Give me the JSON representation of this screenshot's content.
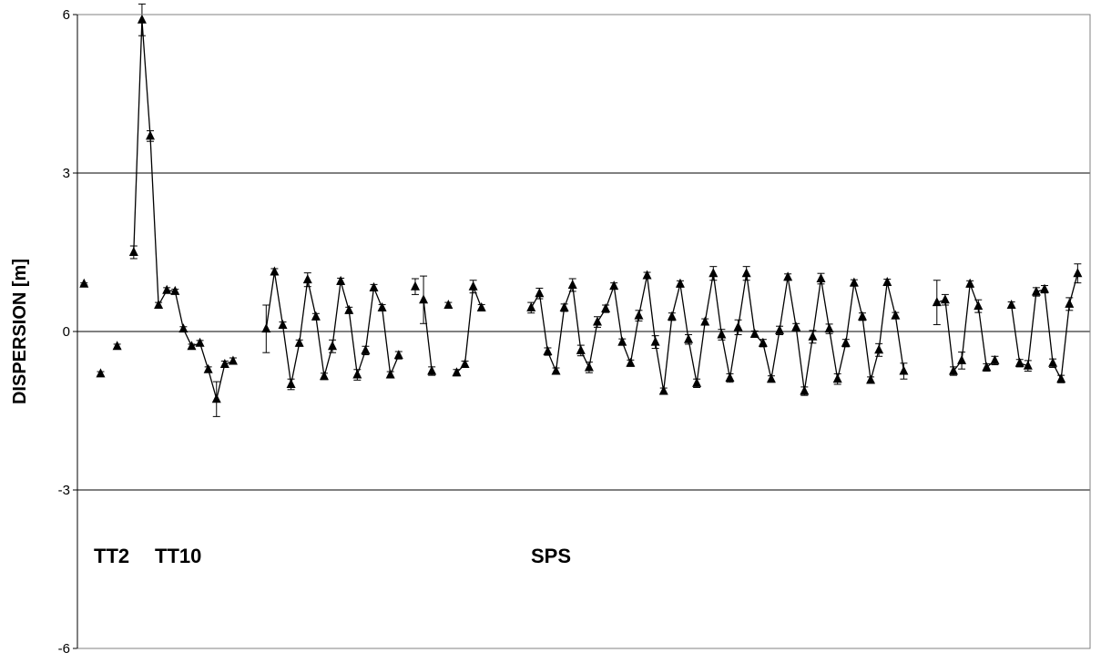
{
  "chart_data": {
    "type": "line",
    "ylabel": "DISPERSION  [m]",
    "xlabel": "",
    "ylim": [
      -6,
      6
    ],
    "y_ticks": [
      "6",
      "3",
      "0",
      "-3",
      "-6"
    ],
    "grid": "horizontal",
    "marker": "filled-triangle",
    "annotations": [
      "TT2",
      "TT10",
      "SPS"
    ],
    "series": [
      {
        "segments": [
          [
            {
              "x": 1,
              "y": 0.9,
              "e": 0.02
            }
          ],
          [
            {
              "x": 3,
              "y": -0.8,
              "e": 0.04
            }
          ],
          [
            {
              "x": 5,
              "y": -0.28,
              "e": 0.04
            }
          ],
          [
            {
              "x": 7,
              "y": 1.5,
              "e": 0.12
            },
            {
              "x": 8,
              "y": 5.9,
              "e": 0.3
            },
            {
              "x": 9,
              "y": 3.7,
              "e": 0.1
            },
            {
              "x": 10,
              "y": 0.5,
              "e": 0.05
            },
            {
              "x": 11,
              "y": 0.78,
              "e": 0.05
            },
            {
              "x": 12,
              "y": 0.76,
              "e": 0.04
            },
            {
              "x": 13,
              "y": 0.05,
              "e": 0.04
            },
            {
              "x": 14,
              "y": -0.28,
              "e": 0.04
            },
            {
              "x": 15,
              "y": -0.22,
              "e": 0.05
            },
            {
              "x": 16,
              "y": -0.72,
              "e": 0.05
            },
            {
              "x": 17,
              "y": -1.28,
              "e": 0.33
            },
            {
              "x": 18,
              "y": -0.62,
              "e": 0.06
            },
            {
              "x": 19,
              "y": -0.56,
              "e": 0.06
            }
          ],
          [
            {
              "x": 23,
              "y": 0.05,
              "e": 0.45
            },
            {
              "x": 24,
              "y": 1.13,
              "e": 0.06
            },
            {
              "x": 25,
              "y": 0.12,
              "e": 0.06
            },
            {
              "x": 26,
              "y": -1.0,
              "e": 0.1
            },
            {
              "x": 27,
              "y": -0.22,
              "e": 0.06
            },
            {
              "x": 28,
              "y": 0.98,
              "e": 0.13
            },
            {
              "x": 29,
              "y": 0.28,
              "e": 0.06
            },
            {
              "x": 30,
              "y": -0.85,
              "e": 0.06
            },
            {
              "x": 31,
              "y": -0.28,
              "e": 0.12
            },
            {
              "x": 32,
              "y": 0.95,
              "e": 0.06
            },
            {
              "x": 33,
              "y": 0.4,
              "e": 0.06
            },
            {
              "x": 34,
              "y": -0.82,
              "e": 0.1
            },
            {
              "x": 35,
              "y": -0.36,
              "e": 0.08
            },
            {
              "x": 36,
              "y": 0.83,
              "e": 0.06
            },
            {
              "x": 37,
              "y": 0.45,
              "e": 0.06
            },
            {
              "x": 38,
              "y": -0.82,
              "e": 0.06
            },
            {
              "x": 39,
              "y": -0.45,
              "e": 0.07
            }
          ],
          [
            {
              "x": 41,
              "y": 0.85,
              "e": 0.15
            }
          ],
          [
            {
              "x": 42,
              "y": 0.6,
              "e": 0.45
            },
            {
              "x": 43,
              "y": -0.75,
              "e": 0.08
            }
          ],
          [
            {
              "x": 45,
              "y": 0.5,
              "e": 0.05
            }
          ],
          [
            {
              "x": 46,
              "y": -0.78,
              "e": 0.06
            },
            {
              "x": 47,
              "y": -0.62,
              "e": 0.06
            },
            {
              "x": 48,
              "y": 0.85,
              "e": 0.12
            },
            {
              "x": 49,
              "y": 0.45,
              "e": 0.06
            }
          ],
          [
            {
              "x": 55,
              "y": 0.45,
              "e": 0.1
            },
            {
              "x": 56,
              "y": 0.72,
              "e": 0.1
            },
            {
              "x": 57,
              "y": -0.38,
              "e": 0.07
            },
            {
              "x": 58,
              "y": -0.75,
              "e": 0.06
            },
            {
              "x": 59,
              "y": 0.45,
              "e": 0.07
            },
            {
              "x": 60,
              "y": 0.88,
              "e": 0.12
            },
            {
              "x": 61,
              "y": -0.36,
              "e": 0.1
            },
            {
              "x": 62,
              "y": -0.68,
              "e": 0.1
            },
            {
              "x": 63,
              "y": 0.18,
              "e": 0.1
            },
            {
              "x": 64,
              "y": 0.43,
              "e": 0.07
            },
            {
              "x": 65,
              "y": 0.86,
              "e": 0.06
            },
            {
              "x": 66,
              "y": -0.2,
              "e": 0.06
            },
            {
              "x": 67,
              "y": -0.6,
              "e": 0.06
            },
            {
              "x": 68,
              "y": 0.3,
              "e": 0.1
            },
            {
              "x": 69,
              "y": 1.06,
              "e": 0.06
            },
            {
              "x": 70,
              "y": -0.2,
              "e": 0.12
            },
            {
              "x": 71,
              "y": -1.13,
              "e": 0.06
            },
            {
              "x": 72,
              "y": 0.28,
              "e": 0.07
            },
            {
              "x": 73,
              "y": 0.9,
              "e": 0.06
            },
            {
              "x": 74,
              "y": -0.15,
              "e": 0.09
            },
            {
              "x": 75,
              "y": -0.98,
              "e": 0.08
            },
            {
              "x": 76,
              "y": 0.18,
              "e": 0.06
            },
            {
              "x": 77,
              "y": 1.1,
              "e": 0.13
            },
            {
              "x": 78,
              "y": -0.06,
              "e": 0.1
            },
            {
              "x": 79,
              "y": -0.88,
              "e": 0.08
            },
            {
              "x": 80,
              "y": 0.08,
              "e": 0.14
            },
            {
              "x": 81,
              "y": 1.1,
              "e": 0.13
            },
            {
              "x": 82,
              "y": -0.05,
              "e": 0.06
            },
            {
              "x": 83,
              "y": -0.22,
              "e": 0.07
            },
            {
              "x": 84,
              "y": -0.9,
              "e": 0.06
            },
            {
              "x": 85,
              "y": 0.02,
              "e": 0.08
            },
            {
              "x": 86,
              "y": 1.03,
              "e": 0.06
            },
            {
              "x": 87,
              "y": 0.08,
              "e": 0.07
            },
            {
              "x": 88,
              "y": -1.13,
              "e": 0.08
            },
            {
              "x": 89,
              "y": -0.1,
              "e": 0.12
            },
            {
              "x": 90,
              "y": 1.0,
              "e": 0.1
            },
            {
              "x": 91,
              "y": 0.05,
              "e": 0.09
            },
            {
              "x": 92,
              "y": -0.9,
              "e": 0.1
            },
            {
              "x": 93,
              "y": -0.22,
              "e": 0.07
            },
            {
              "x": 94,
              "y": 0.92,
              "e": 0.06
            },
            {
              "x": 95,
              "y": 0.28,
              "e": 0.07
            },
            {
              "x": 96,
              "y": -0.92,
              "e": 0.06
            },
            {
              "x": 97,
              "y": -0.35,
              "e": 0.12
            },
            {
              "x": 98,
              "y": 0.93,
              "e": 0.06
            },
            {
              "x": 99,
              "y": 0.3,
              "e": 0.06
            },
            {
              "x": 100,
              "y": -0.75,
              "e": 0.15
            }
          ],
          [
            {
              "x": 104,
              "y": 0.55,
              "e": 0.42
            },
            {
              "x": 105,
              "y": 0.6,
              "e": 0.1
            },
            {
              "x": 106,
              "y": -0.75,
              "e": 0.08
            },
            {
              "x": 107,
              "y": -0.55,
              "e": 0.16
            },
            {
              "x": 108,
              "y": 0.9,
              "e": 0.06
            },
            {
              "x": 109,
              "y": 0.48,
              "e": 0.12
            },
            {
              "x": 110,
              "y": -0.68,
              "e": 0.07
            },
            {
              "x": 111,
              "y": -0.55,
              "e": 0.08
            }
          ],
          [
            {
              "x": 113,
              "y": 0.5,
              "e": 0.06
            },
            {
              "x": 114,
              "y": -0.6,
              "e": 0.07
            },
            {
              "x": 115,
              "y": -0.65,
              "e": 0.1
            },
            {
              "x": 116,
              "y": 0.75,
              "e": 0.08
            },
            {
              "x": 117,
              "y": 0.8,
              "e": 0.07
            },
            {
              "x": 118,
              "y": -0.6,
              "e": 0.08
            },
            {
              "x": 119,
              "y": -0.9,
              "e": 0.07
            },
            {
              "x": 120,
              "y": 0.52,
              "e": 0.12
            },
            {
              "x": 121,
              "y": 1.1,
              "e": 0.18
            }
          ]
        ]
      }
    ]
  }
}
